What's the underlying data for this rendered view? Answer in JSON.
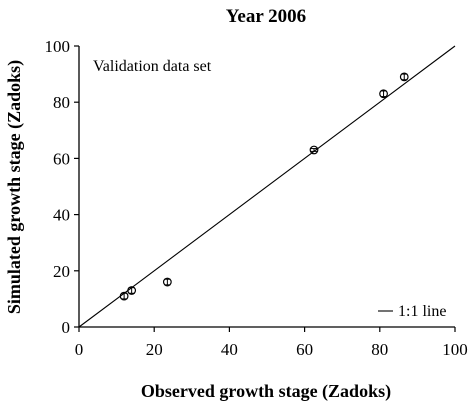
{
  "chart_data": {
    "type": "scatter",
    "title": "Year 2006",
    "xlabel": "Observed growth stage (Zadoks)",
    "ylabel": "Simulated growth stage (Zadoks)",
    "annotation": "Validation data set",
    "xlim": [
      0,
      100
    ],
    "ylim": [
      0,
      100
    ],
    "xticks": [
      0,
      20,
      40,
      60,
      80,
      100
    ],
    "yticks": [
      0,
      20,
      40,
      60,
      80,
      100
    ],
    "grid": false,
    "legend": {
      "position": "bottom-right",
      "entries": [
        "1:1 line"
      ]
    },
    "reference_line": {
      "label": "1:1 line",
      "from": [
        0,
        0
      ],
      "to": [
        100,
        100
      ]
    },
    "series": [
      {
        "marker": "circle-with-error-bar",
        "points": [
          {
            "x": 12,
            "y": 11,
            "err": 1
          },
          {
            "x": 14,
            "y": 13,
            "err": 1
          },
          {
            "x": 23.5,
            "y": 16,
            "err": 1
          },
          {
            "x": 62.5,
            "y": 63,
            "err": 0.5
          },
          {
            "x": 81,
            "y": 83,
            "err": 1
          },
          {
            "x": 86.5,
            "y": 89,
            "err": 1
          }
        ]
      }
    ]
  }
}
